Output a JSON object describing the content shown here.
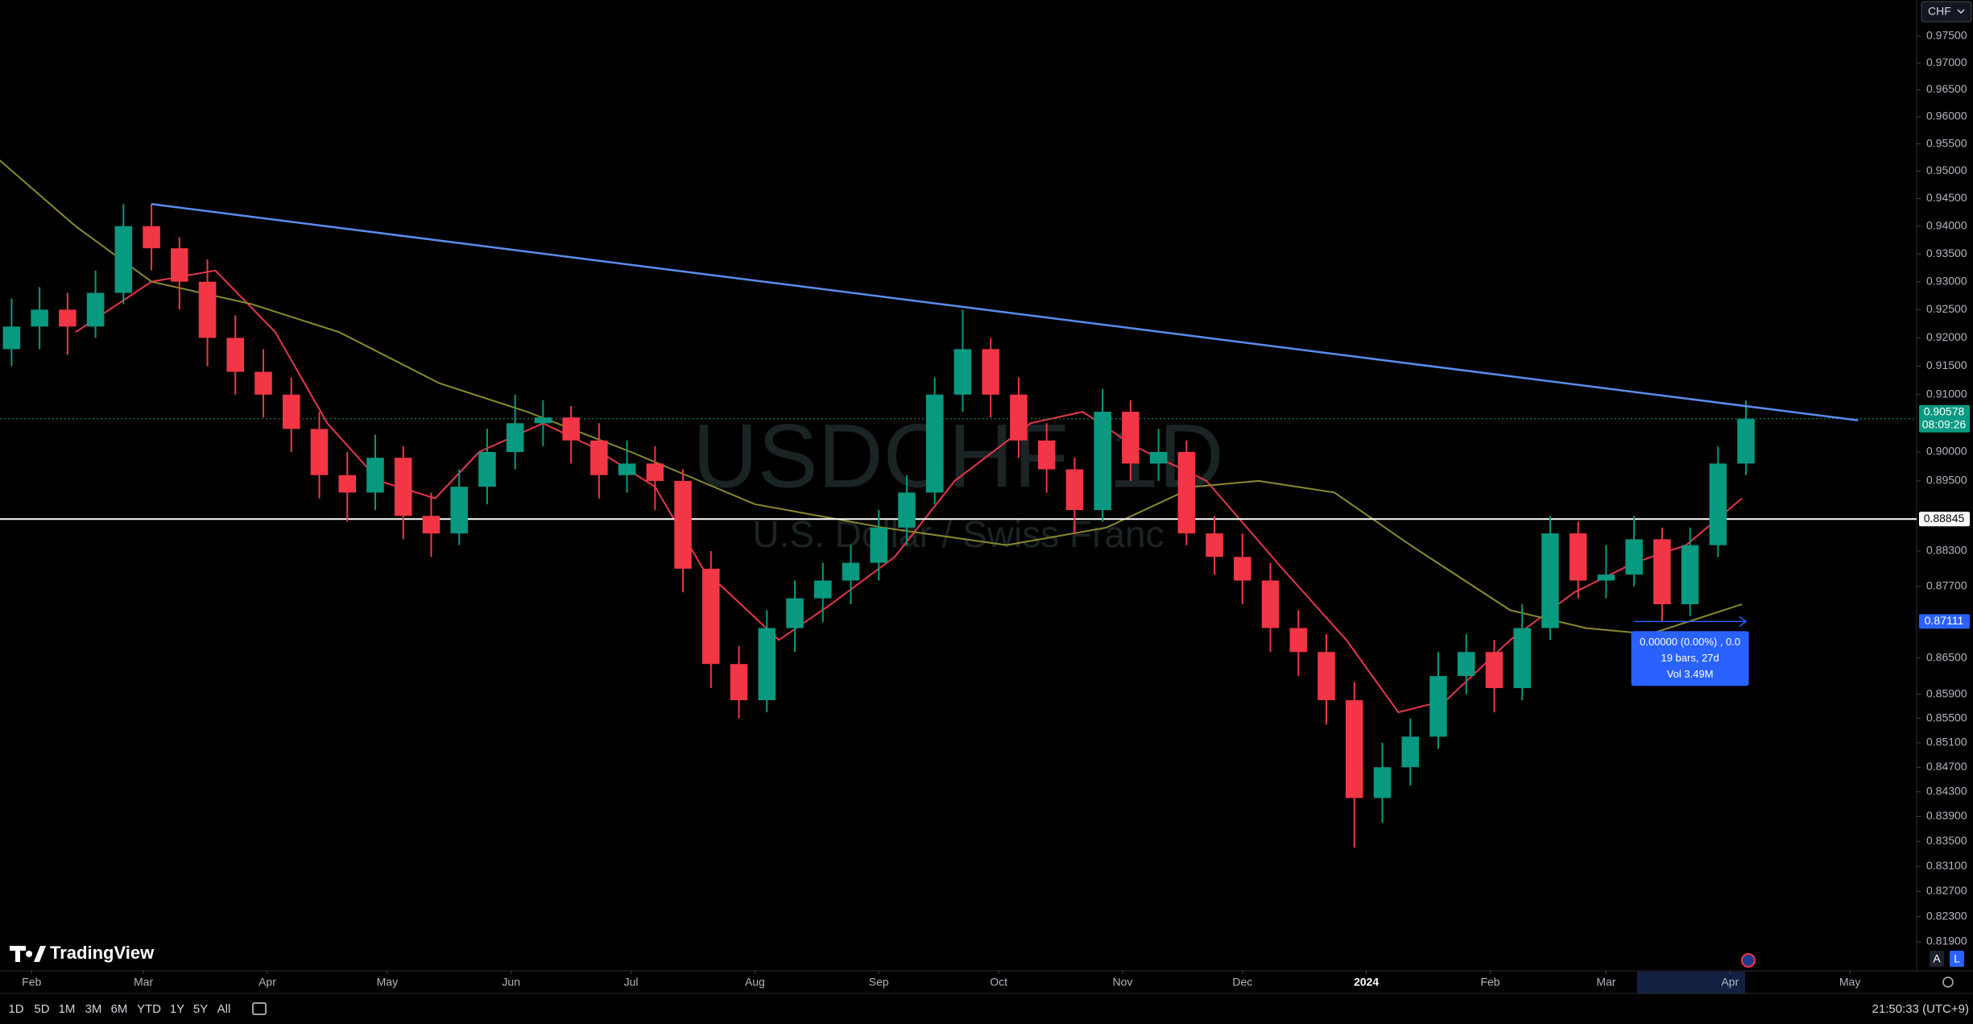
{
  "header": {
    "symbol_badge": "CHF"
  },
  "watermark": {
    "title": "USDCHF, 1D",
    "subtitle": "U.S. Dollar / Swiss Franc"
  },
  "logo": "TradingView",
  "chart_data": {
    "type": "candlestick",
    "log_scale": true,
    "grid": false,
    "ylim": [
      0.819,
      0.975
    ],
    "yticks": [
      {
        "value": 0.975,
        "label": "0.97500"
      },
      {
        "value": 0.97,
        "label": "0.97000"
      },
      {
        "value": 0.965,
        "label": "0.96500"
      },
      {
        "value": 0.96,
        "label": "0.96000"
      },
      {
        "value": 0.955,
        "label": "0.95500"
      },
      {
        "value": 0.95,
        "label": "0.95000"
      },
      {
        "value": 0.945,
        "label": "0.94500"
      },
      {
        "value": 0.94,
        "label": "0.94000"
      },
      {
        "value": 0.935,
        "label": "0.93500"
      },
      {
        "value": 0.93,
        "label": "0.93000"
      },
      {
        "value": 0.925,
        "label": "0.92500"
      },
      {
        "value": 0.92,
        "label": "0.92000"
      },
      {
        "value": 0.915,
        "label": "0.91500"
      },
      {
        "value": 0.91,
        "label": "0.91000"
      },
      {
        "value": 0.9,
        "label": "0.90000"
      },
      {
        "value": 0.895,
        "label": "0.89500"
      },
      {
        "value": 0.883,
        "label": "0.88300"
      },
      {
        "value": 0.877,
        "label": "0.87700"
      },
      {
        "value": 0.865,
        "label": "0.86500"
      },
      {
        "value": 0.859,
        "label": "0.85900"
      },
      {
        "value": 0.855,
        "label": "0.85500"
      },
      {
        "value": 0.851,
        "label": "0.85100"
      },
      {
        "value": 0.847,
        "label": "0.84700"
      },
      {
        "value": 0.843,
        "label": "0.84300"
      },
      {
        "value": 0.839,
        "label": "0.83900"
      },
      {
        "value": 0.835,
        "label": "0.83500"
      },
      {
        "value": 0.831,
        "label": "0.83100"
      },
      {
        "value": 0.827,
        "label": "0.82700"
      },
      {
        "value": 0.823,
        "label": "0.82300"
      },
      {
        "value": 0.819,
        "label": "0.81900"
      }
    ],
    "xlim": [
      -7.9,
      471.7
    ],
    "xticks": [
      {
        "value": 0,
        "label": "Feb"
      },
      {
        "value": 28,
        "label": "Mar"
      },
      {
        "value": 59,
        "label": "Apr"
      },
      {
        "value": 89,
        "label": "May"
      },
      {
        "value": 120,
        "label": "Jun"
      },
      {
        "value": 150,
        "label": "Jul"
      },
      {
        "value": 181,
        "label": "Aug"
      },
      {
        "value": 212,
        "label": "Sep"
      },
      {
        "value": 242,
        "label": "Oct"
      },
      {
        "value": 273,
        "label": "Nov"
      },
      {
        "value": 303,
        "label": "Dec"
      },
      {
        "value": 334,
        "label": "2024"
      },
      {
        "value": 365,
        "label": "Feb"
      },
      {
        "value": 394,
        "label": "Mar"
      },
      {
        "value": 425,
        "label": "Apr"
      },
      {
        "value": 455,
        "label": "May"
      }
    ],
    "up_color": "#089981",
    "down_color": "#f23645",
    "x": [
      -5,
      2,
      9,
      16,
      23,
      30,
      37,
      44,
      51,
      58,
      65,
      72,
      79,
      86,
      93,
      100,
      107,
      114,
      121,
      128,
      135,
      142,
      149,
      156,
      163,
      170,
      177,
      184,
      191,
      198,
      205,
      212,
      219,
      226,
      233,
      240,
      247,
      254,
      261,
      268,
      275,
      282,
      289,
      296,
      303,
      310,
      317,
      324,
      331,
      338,
      345,
      352,
      359,
      366,
      373,
      380,
      387,
      394,
      401,
      408,
      415,
      422,
      429
    ],
    "open": [
      0.918,
      0.922,
      0.925,
      0.922,
      0.928,
      0.94,
      0.936,
      0.93,
      0.92,
      0.914,
      0.91,
      0.904,
      0.896,
      0.893,
      0.899,
      0.889,
      0.886,
      0.894,
      0.9,
      0.905,
      0.906,
      0.902,
      0.896,
      0.898,
      0.895,
      0.88,
      0.864,
      0.858,
      0.87,
      0.875,
      0.878,
      0.881,
      0.887,
      0.893,
      0.91,
      0.918,
      0.91,
      0.902,
      0.897,
      0.89,
      0.907,
      0.898,
      0.9,
      0.886,
      0.882,
      0.878,
      0.87,
      0.866,
      0.858,
      0.842,
      0.847,
      0.852,
      0.862,
      0.866,
      0.86,
      0.87,
      0.886,
      0.878,
      0.879,
      0.885,
      0.874,
      0.884,
      0.898
    ],
    "high": [
      0.927,
      0.929,
      0.928,
      0.932,
      0.944,
      0.944,
      0.938,
      0.934,
      0.924,
      0.918,
      0.913,
      0.907,
      0.9,
      0.903,
      0.901,
      0.893,
      0.897,
      0.904,
      0.91,
      0.909,
      0.908,
      0.905,
      0.902,
      0.901,
      0.897,
      0.883,
      0.867,
      0.873,
      0.878,
      0.881,
      0.884,
      0.89,
      0.896,
      0.913,
      0.925,
      0.92,
      0.913,
      0.905,
      0.899,
      0.911,
      0.909,
      0.904,
      0.902,
      0.889,
      0.886,
      0.881,
      0.873,
      0.869,
      0.861,
      0.851,
      0.855,
      0.866,
      0.869,
      0.868,
      0.874,
      0.889,
      0.888,
      0.884,
      0.889,
      0.887,
      0.887,
      0.901,
      0.909
    ],
    "low": [
      0.915,
      0.918,
      0.917,
      0.92,
      0.926,
      0.932,
      0.925,
      0.915,
      0.91,
      0.906,
      0.9,
      0.892,
      0.888,
      0.89,
      0.885,
      0.882,
      0.884,
      0.891,
      0.897,
      0.901,
      0.898,
      0.892,
      0.893,
      0.89,
      0.876,
      0.86,
      0.855,
      0.856,
      0.866,
      0.871,
      0.874,
      0.878,
      0.884,
      0.891,
      0.907,
      0.906,
      0.899,
      0.893,
      0.886,
      0.888,
      0.895,
      0.895,
      0.884,
      0.879,
      0.874,
      0.866,
      0.862,
      0.854,
      0.834,
      0.838,
      0.844,
      0.85,
      0.859,
      0.856,
      0.858,
      0.868,
      0.875,
      0.875,
      0.877,
      0.871,
      0.872,
      0.882,
      0.896
    ],
    "close": [
      0.922,
      0.925,
      0.922,
      0.928,
      0.94,
      0.936,
      0.93,
      0.92,
      0.914,
      0.91,
      0.904,
      0.896,
      0.893,
      0.899,
      0.889,
      0.886,
      0.894,
      0.9,
      0.905,
      0.906,
      0.902,
      0.896,
      0.898,
      0.895,
      0.88,
      0.864,
      0.858,
      0.87,
      0.875,
      0.878,
      0.881,
      0.887,
      0.893,
      0.91,
      0.918,
      0.91,
      0.902,
      0.897,
      0.89,
      0.907,
      0.898,
      0.9,
      0.886,
      0.882,
      0.878,
      0.87,
      0.866,
      0.858,
      0.842,
      0.847,
      0.852,
      0.862,
      0.866,
      0.86,
      0.87,
      0.886,
      0.878,
      0.879,
      0.885,
      0.874,
      0.884,
      0.898,
      0.90578
    ],
    "moving_averages": [
      {
        "color": "#e8354d",
        "x": [
          11,
          30,
          46,
          61,
          74,
          87,
          101,
          112,
          128,
          140,
          156,
          168,
          187,
          200,
          216,
          231,
          250,
          263,
          276,
          294,
          313,
          329,
          342,
          354,
          370,
          386,
          401,
          414,
          428
        ],
        "values": [
          0.921,
          0.93,
          0.932,
          0.921,
          0.905,
          0.895,
          0.892,
          0.9,
          0.905,
          0.901,
          0.894,
          0.88,
          0.868,
          0.874,
          0.882,
          0.895,
          0.905,
          0.907,
          0.901,
          0.895,
          0.88,
          0.868,
          0.856,
          0.858,
          0.868,
          0.876,
          0.881,
          0.884,
          0.892
        ]
      },
      {
        "color": "#8a8a2e",
        "x": [
          -8,
          11,
          30,
          55,
          77,
          102,
          124,
          150,
          181,
          213,
          244,
          269,
          291,
          307,
          326,
          345,
          370,
          389,
          405,
          428
        ],
        "values": [
          0.952,
          0.94,
          0.93,
          0.926,
          0.921,
          0.912,
          0.907,
          0.9,
          0.891,
          0.887,
          0.884,
          0.887,
          0.894,
          0.895,
          0.893,
          0.884,
          0.873,
          0.87,
          0.869,
          0.874
        ]
      }
    ],
    "trendline": {
      "color": "#5b8def",
      "x": [
        30,
        457
      ],
      "values": [
        0.944,
        0.9055
      ]
    },
    "horizontal_line": {
      "value": 0.88845,
      "color": "#ffffff"
    },
    "last_price": {
      "value": 0.90578,
      "countdown": "08:09:26",
      "color": "#089981"
    },
    "measure": {
      "value": 0.87111,
      "x": [
        401,
        429
      ],
      "color": "#2962ff",
      "texts": [
        "0.00000 (0.00%) , 0.0",
        "19 bars, 27d",
        "Vol 3.49M"
      ]
    }
  },
  "toolbar": {
    "ranges": [
      "1D",
      "5D",
      "1M",
      "3M",
      "6M",
      "YTD",
      "1Y",
      "5Y",
      "All"
    ],
    "clock": "21:50:33 (UTC+9)",
    "scale_buttons": [
      "A",
      "L"
    ]
  }
}
